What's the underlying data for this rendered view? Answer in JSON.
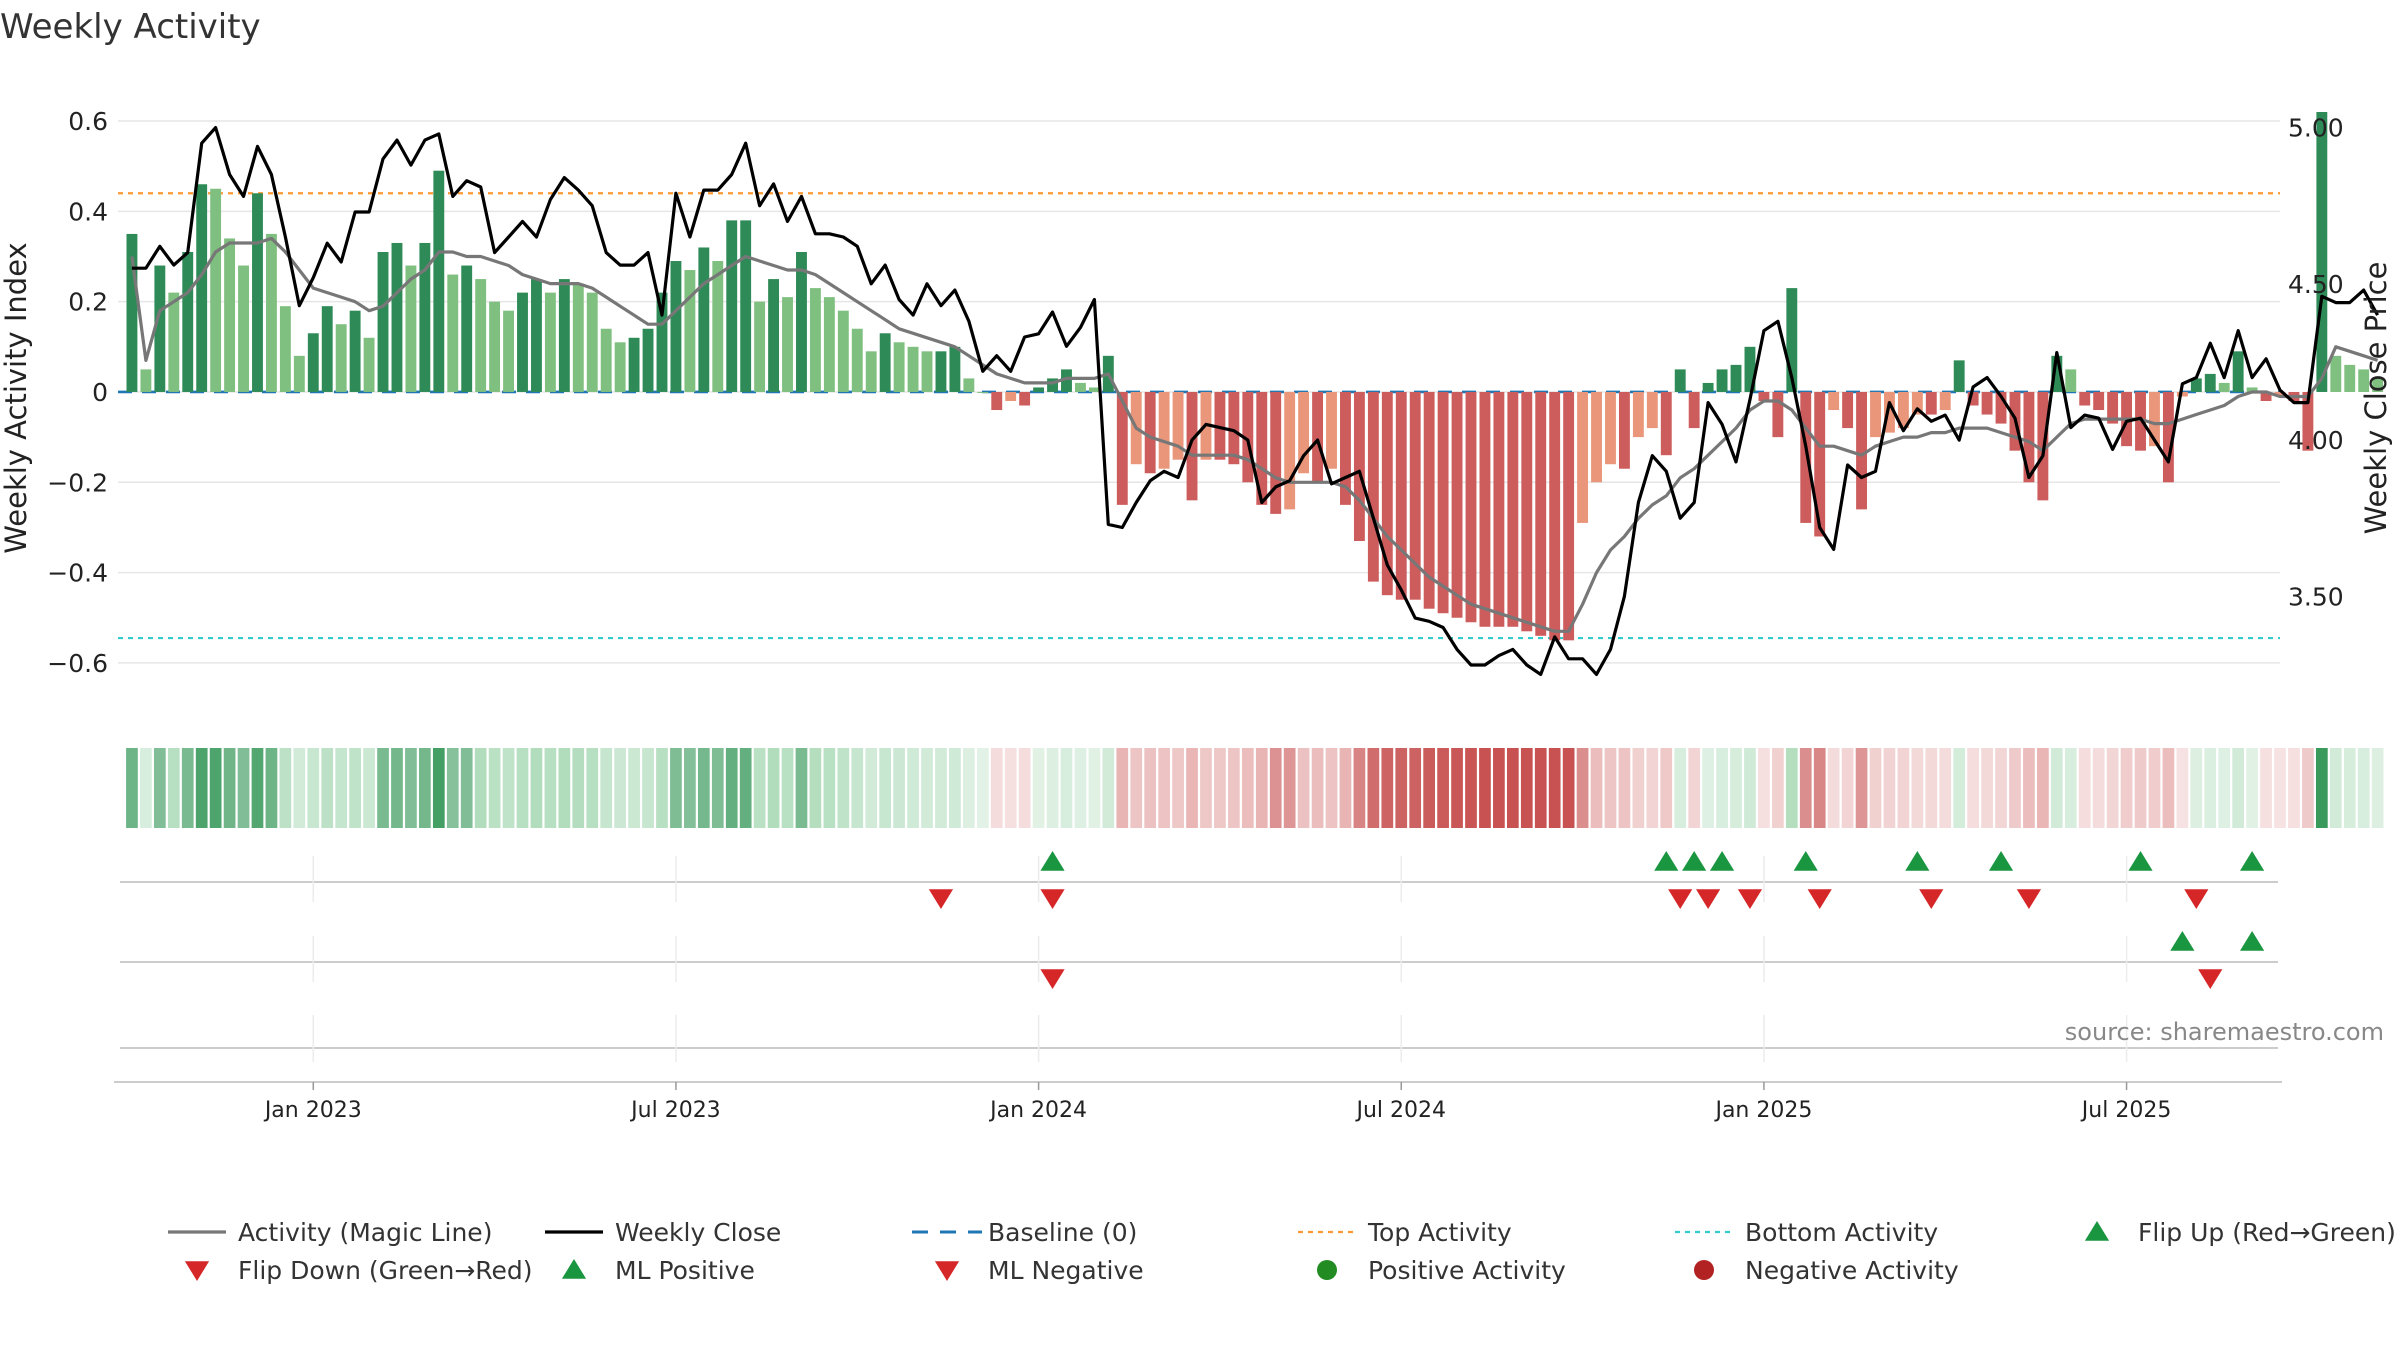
{
  "chart_data": {
    "type": "bar",
    "title": "Weekly Activity",
    "ylabel_left": "Weekly Activity Index",
    "ylabel_right": "Weekly Close Price",
    "source": "source: sharemaestro.com",
    "ylim_left": [
      -0.66,
      0.62
    ],
    "ylim_right": [
      3.2,
      5.05
    ],
    "yticks_left": [
      {
        "v": 0.6,
        "label": "0.6"
      },
      {
        "v": 0.4,
        "label": "0.4"
      },
      {
        "v": 0.2,
        "label": "0.2"
      },
      {
        "v": 0,
        "label": "0"
      },
      {
        "v": -0.2,
        "label": "−0.2"
      },
      {
        "v": -0.4,
        "label": "−0.4"
      },
      {
        "v": -0.6,
        "label": "−0.6"
      }
    ],
    "yticks_right": [
      {
        "v": 5.0,
        "label": "5.00"
      },
      {
        "v": 4.5,
        "label": "4.50"
      },
      {
        "v": 4.0,
        "label": "4.00"
      },
      {
        "v": 3.5,
        "label": "3.50"
      }
    ],
    "x_start_week": -1,
    "x_end_week": 154,
    "xticks": [
      {
        "week": 13,
        "label": "Jan 2023"
      },
      {
        "week": 39,
        "label": "Jul 2023"
      },
      {
        "week": 65,
        "label": "Jan 2024"
      },
      {
        "week": 91,
        "label": "Jul 2024"
      },
      {
        "week": 117,
        "label": "Jan 2025"
      },
      {
        "week": 143,
        "label": "Jul 2025"
      }
    ],
    "top_activity": 0.44,
    "bottom_activity": -0.545,
    "baseline": 0,
    "activity": [
      0.35,
      0.05,
      0.28,
      0.22,
      0.31,
      0.46,
      0.45,
      0.34,
      0.28,
      0.44,
      0.35,
      0.19,
      0.08,
      0.13,
      0.19,
      0.15,
      0.18,
      0.12,
      0.31,
      0.33,
      0.28,
      0.33,
      0.49,
      0.26,
      0.28,
      0.25,
      0.2,
      0.18,
      0.22,
      0.25,
      0.22,
      0.25,
      0.24,
      0.22,
      0.14,
      0.11,
      0.12,
      0.14,
      0.22,
      0.29,
      0.27,
      0.32,
      0.29,
      0.38,
      0.38,
      0.2,
      0.25,
      0.21,
      0.31,
      0.23,
      0.21,
      0.18,
      0.14,
      0.09,
      0.13,
      0.11,
      0.1,
      0.09,
      0.09,
      0.1,
      0.03,
      0.0,
      -0.04,
      -0.02,
      -0.03,
      0.01,
      0.03,
      0.05,
      0.02,
      0.01,
      0.08,
      -0.25,
      -0.16,
      -0.18,
      -0.17,
      -0.15,
      -0.24,
      -0.15,
      -0.15,
      -0.16,
      -0.2,
      -0.25,
      -0.27,
      -0.26,
      -0.18,
      -0.2,
      -0.17,
      -0.25,
      -0.33,
      -0.42,
      -0.45,
      -0.46,
      -0.46,
      -0.48,
      -0.49,
      -0.5,
      -0.51,
      -0.52,
      -0.52,
      -0.52,
      -0.53,
      -0.54,
      -0.55,
      -0.55,
      -0.29,
      -0.2,
      -0.16,
      -0.17,
      -0.1,
      -0.08,
      -0.14,
      0.05,
      -0.08,
      0.02,
      0.05,
      0.06,
      0.1,
      -0.02,
      -0.1,
      0.23,
      -0.29,
      -0.32,
      -0.04,
      -0.08,
      -0.26,
      -0.1,
      -0.09,
      -0.08,
      -0.05,
      -0.05,
      -0.04,
      0.07,
      -0.03,
      -0.05,
      -0.07,
      -0.13,
      -0.2,
      -0.24,
      0.08,
      0.05,
      -0.03,
      -0.04,
      -0.07,
      -0.12,
      -0.13,
      -0.12,
      -0.2,
      -0.01,
      0.03,
      0.04,
      0.02,
      0.09,
      0.01,
      -0.02,
      -0.01,
      -0.02,
      -0.13,
      0.62,
      0.08,
      0.06,
      0.05,
      0.03
    ],
    "magic_line": [
      0.3,
      0.07,
      0.18,
      0.2,
      0.22,
      0.26,
      0.31,
      0.33,
      0.33,
      0.33,
      0.34,
      0.31,
      0.27,
      0.23,
      0.22,
      0.21,
      0.2,
      0.18,
      0.19,
      0.22,
      0.25,
      0.27,
      0.31,
      0.31,
      0.3,
      0.3,
      0.29,
      0.28,
      0.26,
      0.25,
      0.24,
      0.24,
      0.24,
      0.23,
      0.21,
      0.19,
      0.17,
      0.15,
      0.15,
      0.18,
      0.21,
      0.24,
      0.26,
      0.28,
      0.3,
      0.29,
      0.28,
      0.27,
      0.27,
      0.26,
      0.24,
      0.22,
      0.2,
      0.18,
      0.16,
      0.14,
      0.13,
      0.12,
      0.11,
      0.1,
      0.08,
      0.06,
      0.04,
      0.03,
      0.02,
      0.02,
      0.02,
      0.03,
      0.03,
      0.03,
      0.04,
      -0.02,
      -0.08,
      -0.1,
      -0.11,
      -0.12,
      -0.14,
      -0.14,
      -0.14,
      -0.14,
      -0.15,
      -0.17,
      -0.19,
      -0.2,
      -0.2,
      -0.2,
      -0.2,
      -0.21,
      -0.24,
      -0.28,
      -0.32,
      -0.35,
      -0.38,
      -0.41,
      -0.43,
      -0.45,
      -0.47,
      -0.48,
      -0.49,
      -0.5,
      -0.51,
      -0.52,
      -0.53,
      -0.53,
      -0.47,
      -0.4,
      -0.35,
      -0.32,
      -0.28,
      -0.25,
      -0.23,
      -0.19,
      -0.17,
      -0.14,
      -0.11,
      -0.08,
      -0.04,
      -0.02,
      -0.02,
      -0.04,
      -0.08,
      -0.12,
      -0.12,
      -0.13,
      -0.14,
      -0.12,
      -0.11,
      -0.1,
      -0.1,
      -0.09,
      -0.09,
      -0.08,
      -0.08,
      -0.08,
      -0.09,
      -0.1,
      -0.11,
      -0.13,
      -0.1,
      -0.07,
      -0.06,
      -0.06,
      -0.06,
      -0.06,
      -0.06,
      -0.07,
      -0.07,
      -0.06,
      -0.05,
      -0.04,
      -0.03,
      -0.01,
      0.0,
      0.0,
      -0.01,
      -0.01,
      -0.01,
      0.03,
      0.1,
      0.09,
      0.08,
      0.07
    ]
  },
  "weekly_close": [
    4.55,
    4.55,
    4.62,
    4.56,
    4.6,
    4.95,
    5.0,
    4.85,
    4.78,
    4.94,
    4.85,
    4.65,
    4.43,
    4.52,
    4.63,
    4.57,
    4.73,
    4.73,
    4.9,
    4.96,
    4.88,
    4.96,
    4.98,
    4.78,
    4.83,
    4.81,
    4.6,
    4.65,
    4.7,
    4.65,
    4.77,
    4.84,
    4.8,
    4.75,
    4.6,
    4.56,
    4.56,
    4.6,
    4.4,
    4.79,
    4.65,
    4.8,
    4.8,
    4.85,
    4.95,
    4.75,
    4.82,
    4.7,
    4.78,
    4.66,
    4.66,
    4.65,
    4.62,
    4.5,
    4.56,
    4.45,
    4.4,
    4.5,
    4.43,
    4.48,
    4.38,
    4.22,
    4.27,
    4.22,
    4.33,
    4.34,
    4.41,
    4.3,
    4.36,
    4.45,
    3.73,
    3.72,
    3.8,
    3.87,
    3.9,
    3.88,
    4.0,
    4.05,
    4.04,
    4.03,
    4.0,
    3.8,
    3.85,
    3.87,
    3.95,
    4.0,
    3.86,
    3.88,
    3.9,
    3.75,
    3.6,
    3.52,
    3.43,
    3.42,
    3.4,
    3.33,
    3.28,
    3.28,
    3.31,
    3.33,
    3.28,
    3.25,
    3.37,
    3.3,
    3.3,
    3.25,
    3.33,
    3.5,
    3.8,
    3.95,
    3.9,
    3.75,
    3.8,
    4.12,
    4.05,
    3.93,
    4.13,
    4.35,
    4.38,
    4.2,
    3.98,
    3.72,
    3.65,
    3.92,
    3.88,
    3.9,
    4.12,
    4.03,
    4.1,
    4.06,
    4.08,
    4.0,
    4.17,
    4.2,
    4.14,
    4.07,
    3.88,
    3.95,
    4.28,
    4.04,
    4.08,
    4.07,
    3.97,
    4.06,
    4.07,
    4.0,
    3.93,
    4.18,
    4.2,
    4.31,
    4.2,
    4.35,
    4.2,
    4.26,
    4.16,
    4.12,
    4.12,
    4.46,
    4.44,
    4.44,
    4.48,
    4.4
  ],
  "status_strip_label": "",
  "flip_markers": {
    "flip_up_weeks": [
      66,
      110,
      112,
      114,
      120,
      128,
      134,
      144,
      152
    ],
    "flip_down_weeks": [
      58,
      66,
      111,
      113,
      116,
      121,
      129,
      136,
      148
    ],
    "ml_positive_weeks": [
      147,
      152
    ],
    "ml_negative_weeks": [
      66,
      149
    ]
  },
  "legend": [
    {
      "label": "Activity (Magic Line)",
      "kind": "line",
      "color": "#777777"
    },
    {
      "label": "Weekly Close",
      "kind": "line",
      "color": "#000000"
    },
    {
      "label": "Baseline (0)",
      "kind": "dash",
      "color": "#1f77b4"
    },
    {
      "label": "Top Activity",
      "kind": "dot",
      "color": "#ff9933"
    },
    {
      "label": "Bottom Activity",
      "kind": "dot",
      "color": "#33cccc"
    },
    {
      "label": "Flip Up (Red→Green)",
      "kind": "tri-up",
      "color": "#1a9641"
    },
    {
      "label": "Flip Down (Green→Red)",
      "kind": "tri-down",
      "color": "#d62728"
    },
    {
      "label": "ML Positive",
      "kind": "tri-up",
      "color": "#1a9641"
    },
    {
      "label": "ML Negative",
      "kind": "tri-down",
      "color": "#d62728"
    },
    {
      "label": "Positive Activity",
      "kind": "circle",
      "color": "#228b22"
    },
    {
      "label": "Negative Activity",
      "kind": "circle",
      "color": "#b22222"
    }
  ],
  "colors": {
    "pos_strong": "#2e8b57",
    "pos_weak": "#7fbf7f",
    "neg_strong": "#cd5c5c",
    "neg_weak": "#e9967a",
    "magic": "#777777",
    "close": "#000000",
    "baseline": "#1f77b4",
    "top": "#ff9933",
    "bottom": "#33cccc",
    "up": "#1a9641",
    "down": "#d62728",
    "grid": "#e6e6e6",
    "axis_text": "#222222",
    "source_text": "#888888"
  }
}
